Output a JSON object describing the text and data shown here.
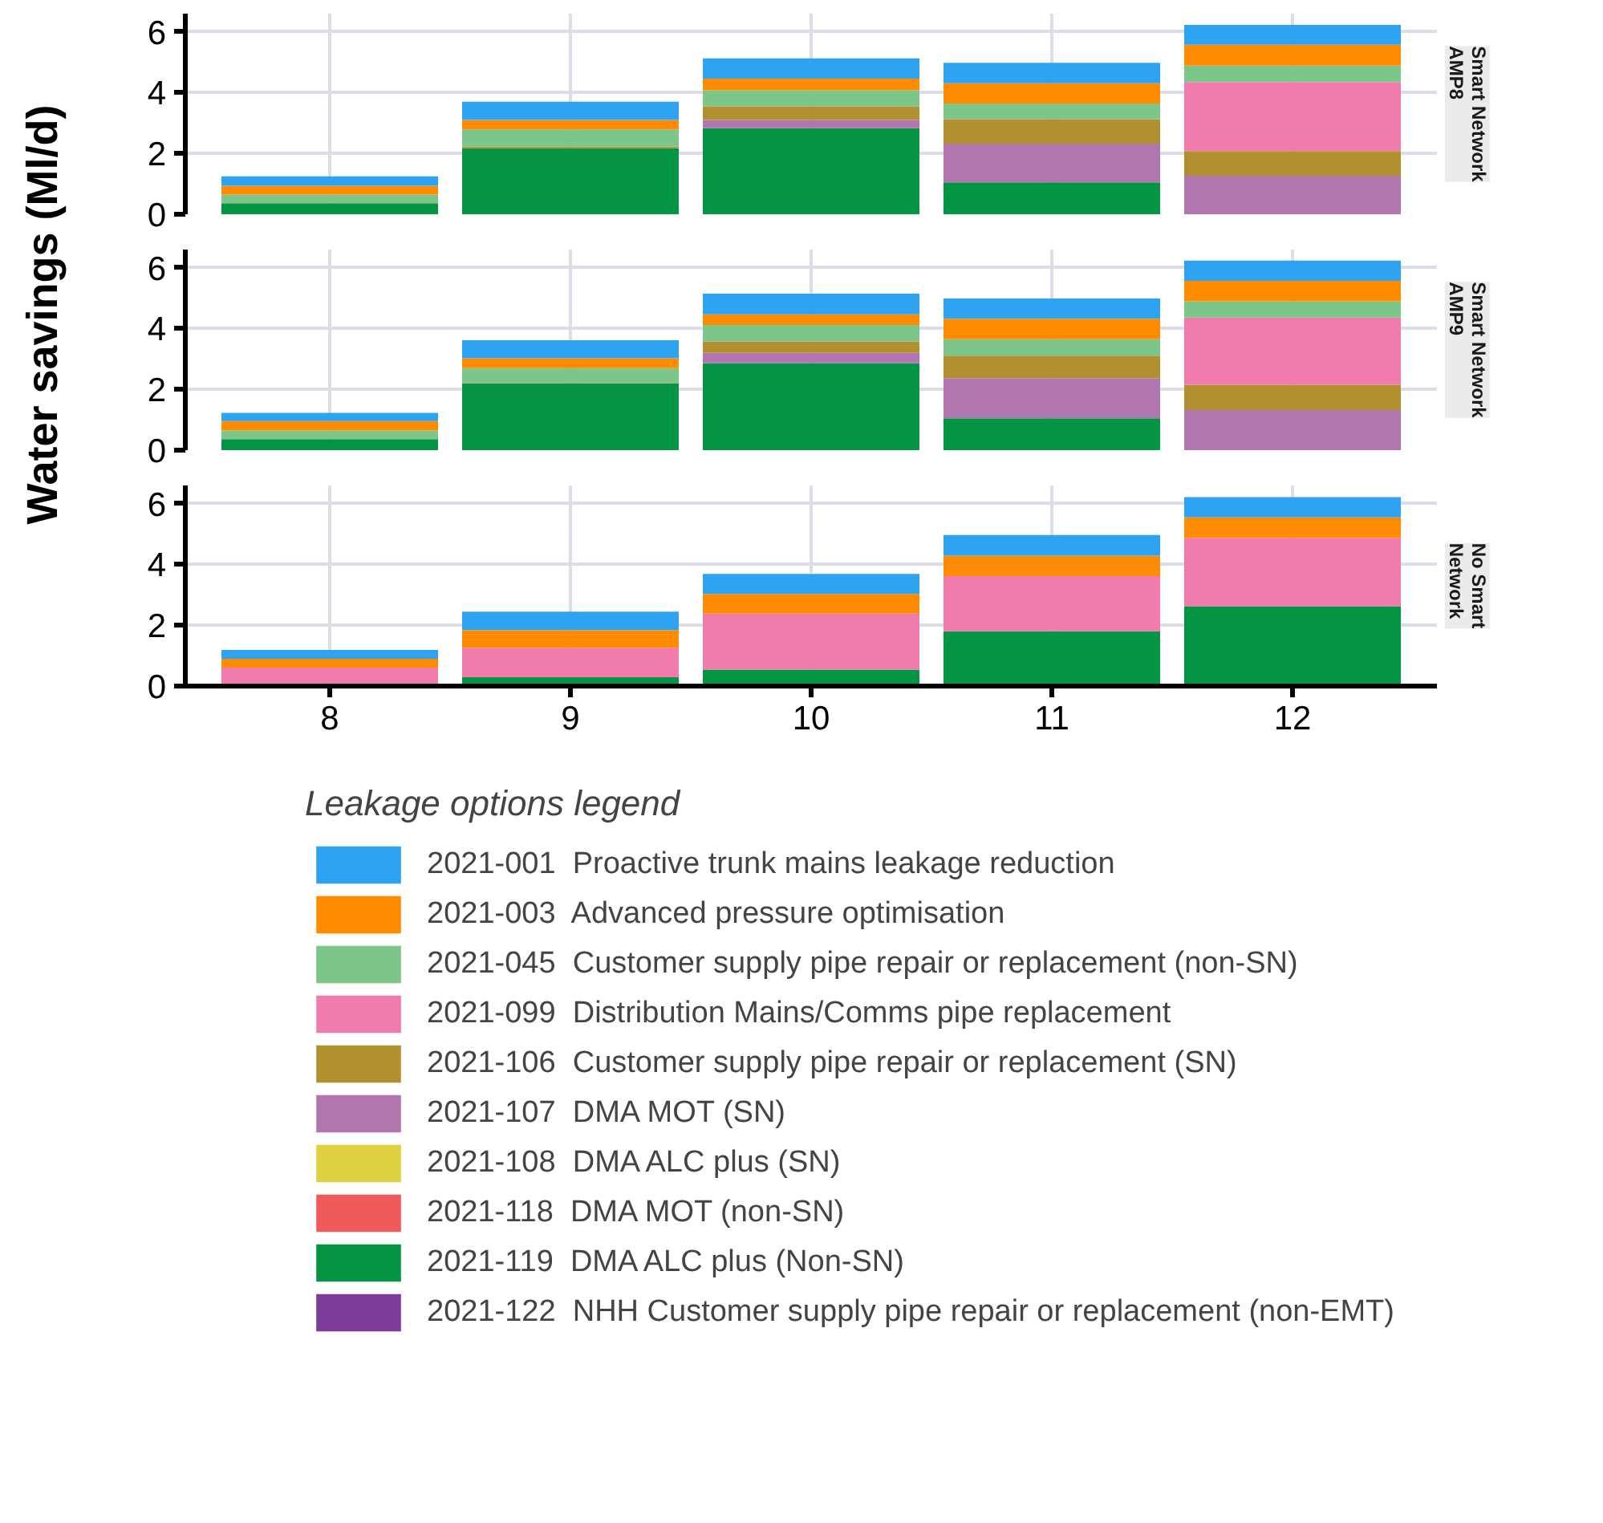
{
  "chart_data": [
    {
      "type": "bar",
      "stacked": true,
      "title": "Smart Network AMP8",
      "categories": [
        "8",
        "9",
        "10",
        "11",
        "12"
      ],
      "ylim": [
        0,
        6.6
      ],
      "yticks": [
        0,
        2,
        4,
        6
      ],
      "grid": true,
      "tick_labels": "y",
      "series": [
        {
          "color": "#7d3c98",
          "values": [
            null,
            null,
            null,
            null,
            null
          ]
        },
        {
          "color": "#039444",
          "values": [
            0.36,
            2.17,
            2.83,
            1.05,
            null
          ]
        },
        {
          "color": "#f05a5a",
          "values": [
            null,
            null,
            null,
            null,
            null
          ]
        },
        {
          "color": "#dfd040",
          "values": [
            null,
            null,
            null,
            null,
            null
          ]
        },
        {
          "color": "#b176b0",
          "values": [
            null,
            null,
            0.27,
            1.27,
            1.27
          ]
        },
        {
          "color": "#b09030",
          "values": [
            null,
            0.06,
            0.45,
            0.81,
            0.81
          ]
        },
        {
          "color": "#f07bac",
          "values": [
            null,
            null,
            null,
            null,
            2.27
          ]
        },
        {
          "color": "#7cc68a",
          "values": [
            0.29,
            0.56,
            0.53,
            0.51,
            0.54
          ]
        },
        {
          "color": "#ff8c00",
          "values": [
            0.29,
            0.31,
            0.38,
            0.67,
            0.69
          ]
        },
        {
          "color": "#2ea3f2",
          "values": [
            0.31,
            0.6,
            0.67,
            0.67,
            0.65
          ]
        }
      ]
    },
    {
      "type": "bar",
      "stacked": true,
      "title": "Smart Network AMP9",
      "ylabel": "Water savings (Ml/d)",
      "categories": [
        "8",
        "9",
        "10",
        "11",
        "12"
      ],
      "ylim": [
        0,
        6.6
      ],
      "yticks": [
        0,
        2,
        4,
        6
      ],
      "grid": true,
      "tick_labels": "y",
      "series": [
        {
          "color": "#7d3c98",
          "values": [
            null,
            null,
            null,
            null,
            null
          ]
        },
        {
          "color": "#039444",
          "values": [
            0.36,
            2.19,
            2.86,
            1.05,
            null
          ]
        },
        {
          "color": "#f05a5a",
          "values": [
            null,
            null,
            null,
            null,
            null
          ]
        },
        {
          "color": "#dfd040",
          "values": [
            null,
            null,
            null,
            null,
            null
          ]
        },
        {
          "color": "#b176b0",
          "values": [
            null,
            null,
            0.34,
            1.32,
            1.32
          ]
        },
        {
          "color": "#b09030",
          "values": [
            null,
            0.02,
            0.38,
            0.74,
            0.83
          ]
        },
        {
          "color": "#f07bac",
          "values": [
            null,
            null,
            null,
            null,
            2.21
          ]
        },
        {
          "color": "#7cc68a",
          "values": [
            0.29,
            0.49,
            0.54,
            0.54,
            0.54
          ]
        },
        {
          "color": "#ff8c00",
          "values": [
            0.31,
            0.32,
            0.35,
            0.67,
            0.67
          ]
        },
        {
          "color": "#2ea3f2",
          "values": [
            0.27,
            0.6,
            0.68,
            0.67,
            0.67
          ]
        }
      ]
    },
    {
      "type": "bar",
      "stacked": true,
      "title": "No Smart Network",
      "categories": [
        "8",
        "9",
        "10",
        "11",
        "12"
      ],
      "ylim": [
        0,
        6.6
      ],
      "yticks": [
        0,
        2,
        4,
        6
      ],
      "grid": true,
      "legend": "bottom",
      "legend_title": "Leakage options legend",
      "series": [
        {
          "name": "2021-122  NHH Customer supply pipe repair or replacement (non-EMT)",
          "color": "#7d3c98",
          "values": [
            null,
            null,
            null,
            null,
            null
          ]
        },
        {
          "name": "2021-119  DMA ALC plus (Non-SN)",
          "color": "#039444",
          "values": [
            null,
            0.29,
            0.54,
            1.8,
            2.63
          ]
        },
        {
          "name": "2021-118  DMA MOT (non-SN)",
          "color": "#f05a5a",
          "values": [
            null,
            null,
            null,
            null,
            null
          ]
        },
        {
          "name": "2021-108  DMA ALC plus (SN)",
          "color": "#dfd040",
          "values": [
            null,
            null,
            null,
            null,
            null
          ]
        },
        {
          "name": "2021-107  DMA MOT (SN)",
          "color": "#b176b0",
          "values": [
            null,
            null,
            null,
            null,
            null
          ]
        },
        {
          "name": "2021-106  Customer supply pipe repair or replacement (SN)",
          "color": "#b09030",
          "values": [
            null,
            null,
            null,
            null,
            null
          ]
        },
        {
          "name": "2021-099  Distribution Mains/Comms pipe replacement",
          "color": "#f07bac",
          "values": [
            0.61,
            0.97,
            1.84,
            1.82,
            2.25
          ]
        },
        {
          "name": "2021-045  Customer supply pipe repair or replacement (non-SN)",
          "color": "#7cc68a",
          "values": [
            null,
            null,
            null,
            null,
            null
          ]
        },
        {
          "name": "2021-003  Advanced pressure optimisation",
          "color": "#ff8c00",
          "values": [
            0.29,
            0.58,
            0.65,
            0.67,
            0.67
          ]
        },
        {
          "name": "2021-001  Proactive trunk mains leakage reduction",
          "color": "#2ea3f2",
          "values": [
            0.29,
            0.61,
            0.66,
            0.68,
            0.67
          ]
        }
      ]
    }
  ]
}
